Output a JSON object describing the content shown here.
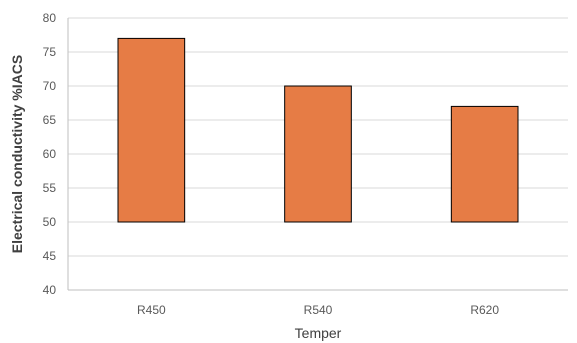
{
  "chart_data": {
    "type": "bar",
    "categories": [
      "R450",
      "R540",
      "R620"
    ],
    "values": [
      77,
      70,
      67
    ],
    "bar_base": 50,
    "title": "",
    "xlabel": "Temper",
    "ylabel": "Electrical conductivity %IACS",
    "ylim": [
      40,
      80
    ],
    "yticks": [
      40,
      45,
      50,
      55,
      60,
      65,
      70,
      75,
      80
    ],
    "grid": true,
    "legend": "none",
    "colors": {
      "bar_fill": "#E67C45",
      "bar_stroke": "#000000",
      "grid": "#D9D9D9",
      "axis": "#BFBFBF"
    }
  }
}
